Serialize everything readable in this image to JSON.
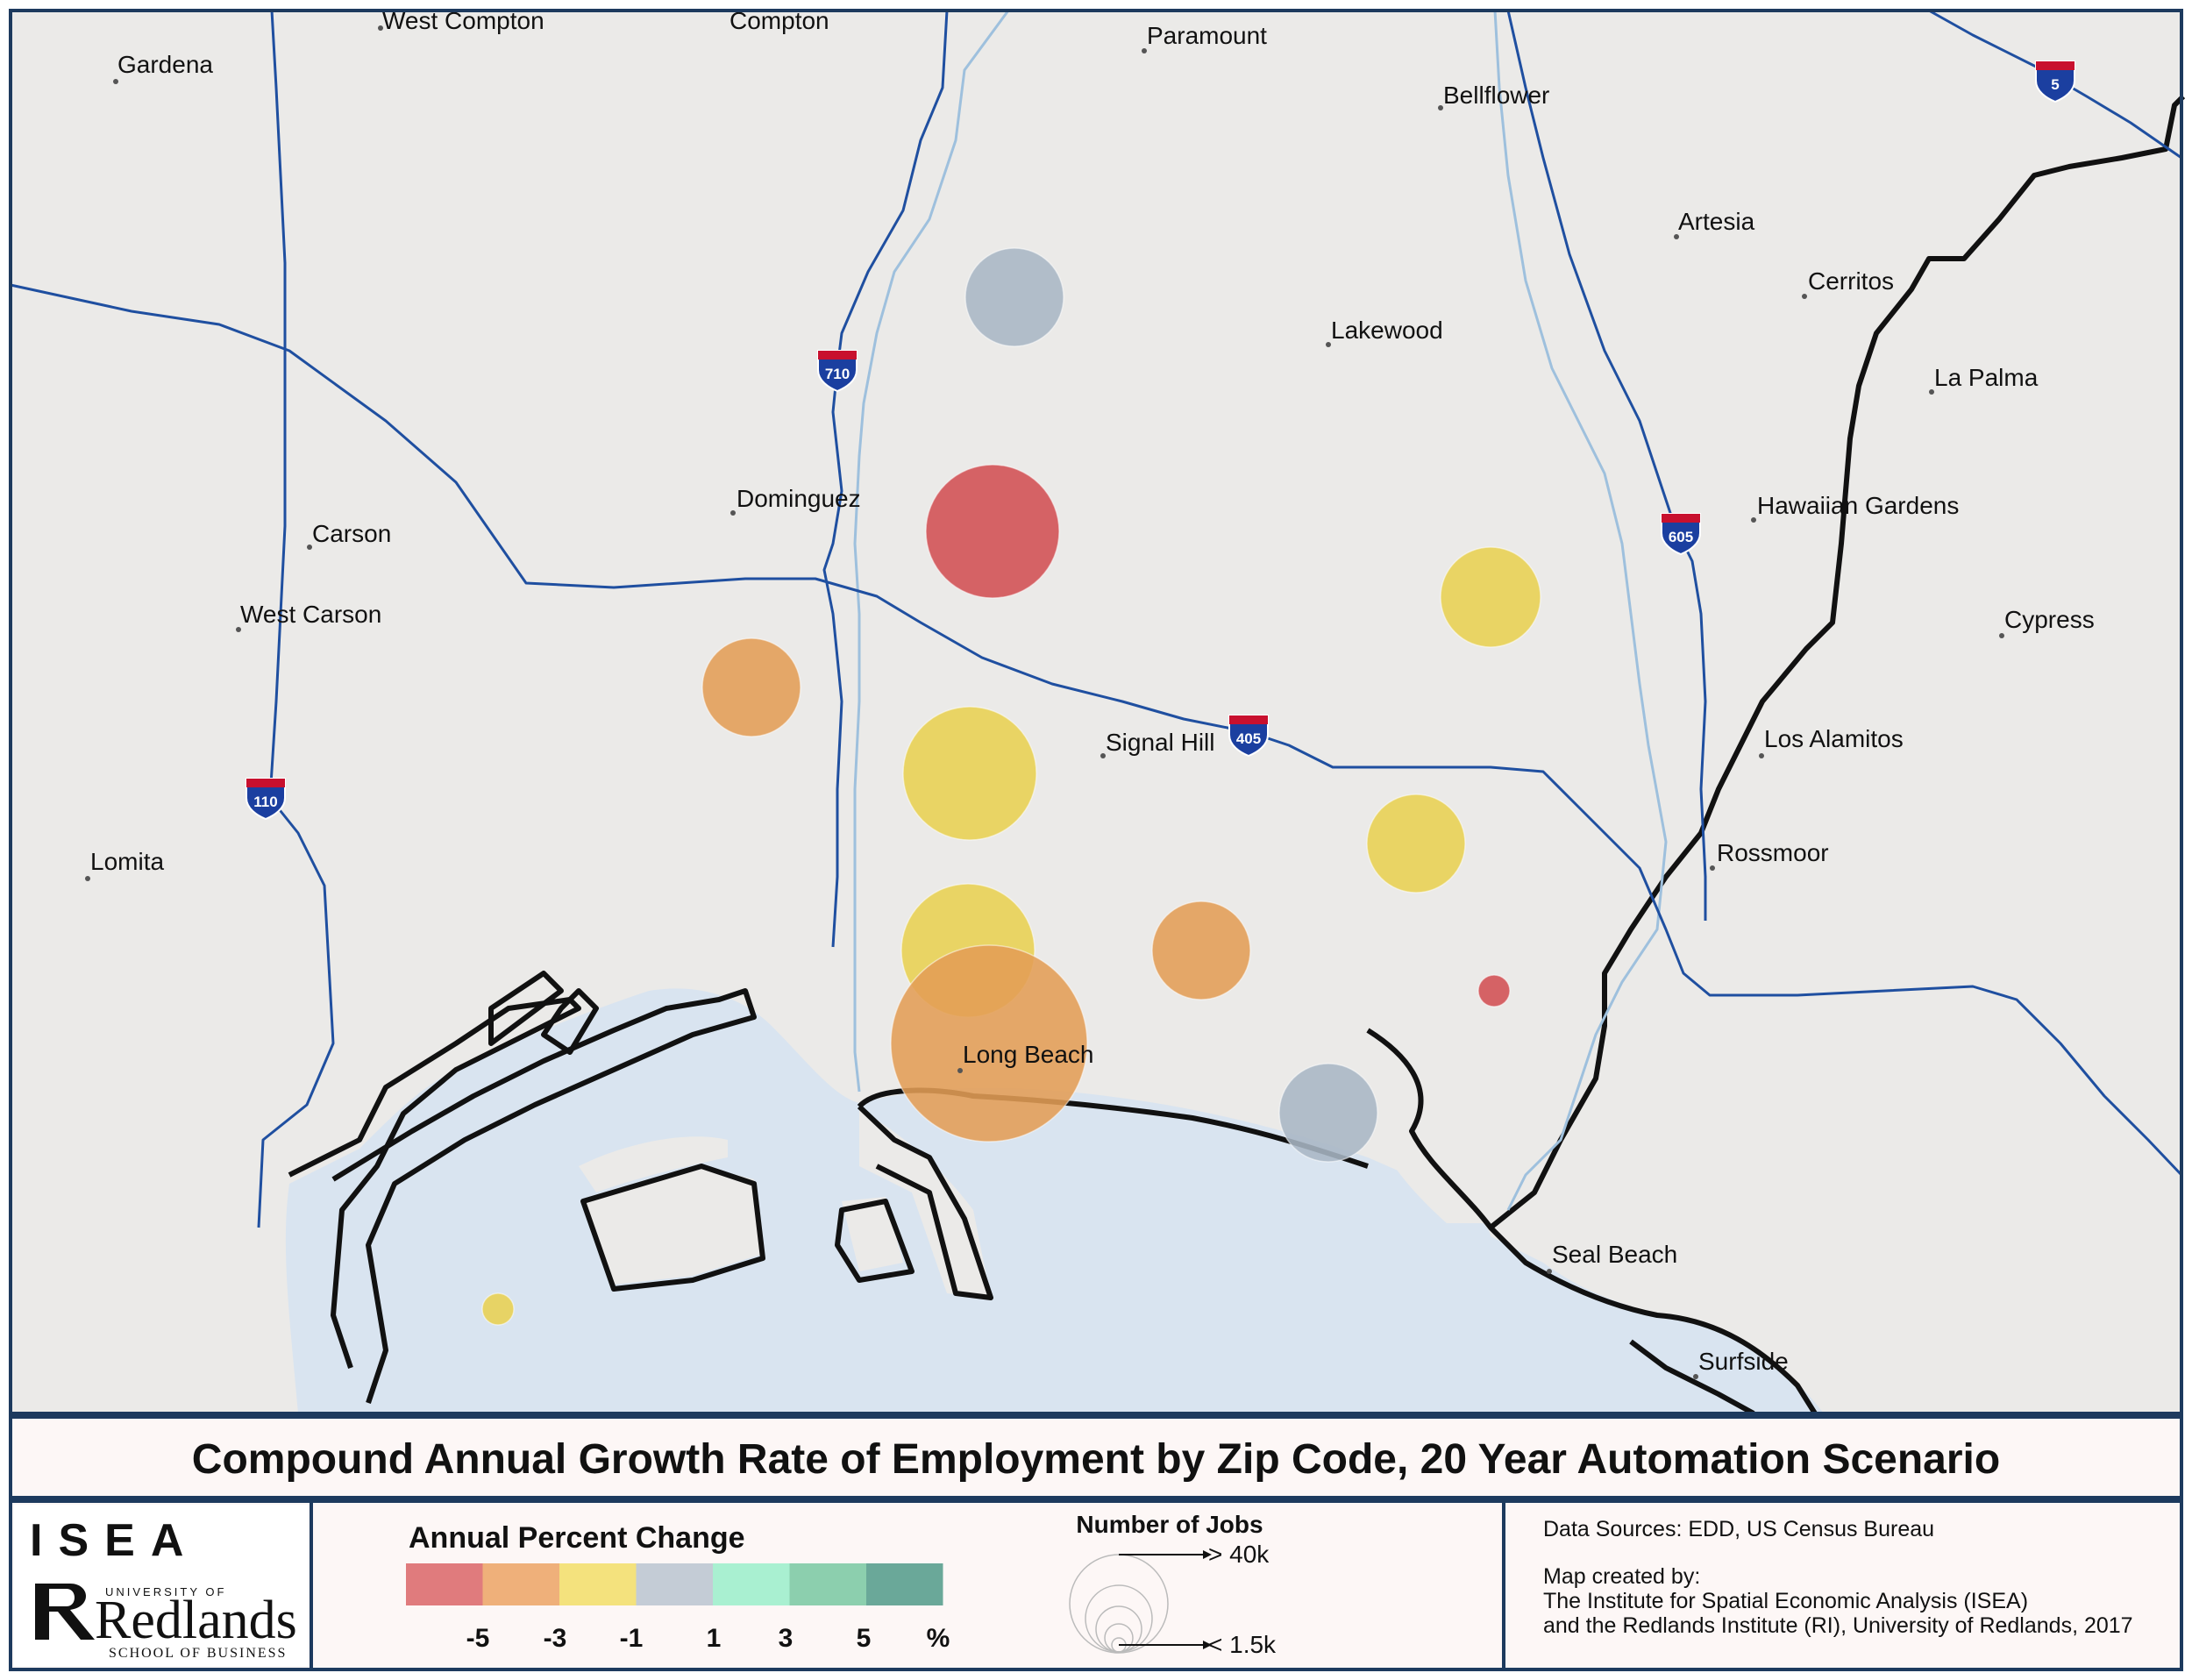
{
  "title": "Compound Annual Growth Rate of Employment by Zip Code, 20 Year Automation Scenario",
  "colors": {
    "land": "#ebeae8",
    "water": "#d9e4f0",
    "freeway": "#1f4fa0",
    "river": "#9ec0dd",
    "boundary": "#111111",
    "frame": "#1d3a5e",
    "panel": "#fdf7f6"
  },
  "places": [
    {
      "name": "West Compton"
    },
    {
      "name": "Compton"
    },
    {
      "name": "Paramount"
    },
    {
      "name": "Gardena"
    },
    {
      "name": "Bellflower"
    },
    {
      "name": "Artesia"
    },
    {
      "name": "Cerritos"
    },
    {
      "name": "Lakewood"
    },
    {
      "name": "La Palma"
    },
    {
      "name": "Dominguez"
    },
    {
      "name": "Carson"
    },
    {
      "name": "Hawaiian Gardens"
    },
    {
      "name": "West Carson"
    },
    {
      "name": "Cypress"
    },
    {
      "name": "Signal Hill"
    },
    {
      "name": "Los Alamitos"
    },
    {
      "name": "Rossmoor"
    },
    {
      "name": "Lomita"
    },
    {
      "name": "Long Beach"
    },
    {
      "name": "Seal Beach"
    },
    {
      "name": "Surfside"
    }
  ],
  "interstates": [
    {
      "number": "5"
    },
    {
      "number": "710"
    },
    {
      "number": "605"
    },
    {
      "number": "405"
    },
    {
      "number": "110"
    }
  ],
  "zip_circles": [
    {
      "growth_class": "-1 to 1",
      "color": "#a8b6c4"
    },
    {
      "growth_class": "< -5",
      "color": "#d24f52"
    },
    {
      "growth_class": "-3 to -1",
      "color": "#e8d051"
    },
    {
      "growth_class": "-5 to -3",
      "color": "#e39d55"
    },
    {
      "growth_class": "-3 to -1",
      "color": "#e8d051"
    },
    {
      "growth_class": "-3 to -1",
      "color": "#e8d051"
    },
    {
      "growth_class": "-3 to -1",
      "color": "#e8d051"
    },
    {
      "growth_class": "-5 to -3",
      "color": "#e39d55"
    },
    {
      "growth_class": "-5 to -3",
      "color": "#e39d55"
    },
    {
      "growth_class": "< -5",
      "color": "#d24f52"
    },
    {
      "growth_class": "-1 to 1",
      "color": "#a8b6c4"
    },
    {
      "growth_class": "-3 to -1",
      "color": "#e8d051"
    }
  ],
  "legend": {
    "heading": "Annual Percent Change",
    "swatches": [
      "#e07b7d",
      "#efb07a",
      "#f4e27d",
      "#c4ccd6",
      "#a9f0d1",
      "#8ccfae",
      "#6aa899"
    ],
    "ticks": [
      "-5",
      "-3",
      "-1",
      "1",
      "3",
      "5",
      "%"
    ],
    "size_heading": "Number of Jobs",
    "size_max_label": "> 40k",
    "size_min_label": "< 1.5k"
  },
  "logo": {
    "isea": "ISEA",
    "university": "UNIVERSITY OF",
    "redlands": "Redlands",
    "school": "SCHOOL OF BUSINESS"
  },
  "credits": {
    "sources": "Data Sources: EDD, US Census Bureau",
    "created_by": "Map created by:",
    "line1": "The Institute for Spatial Economic Analysis (ISEA)",
    "line2": "and the Redlands Institute (RI), University of Redlands, 2017"
  }
}
